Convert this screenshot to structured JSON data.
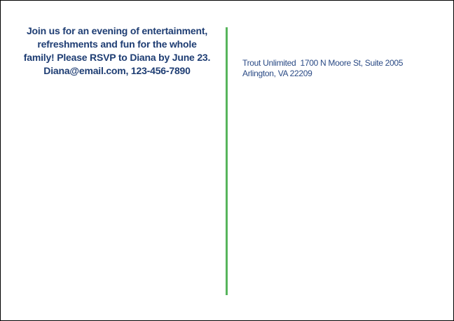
{
  "card": {
    "background": "#ffffff",
    "border_color": "#000000",
    "divider_color": "#57b55c",
    "invitation": {
      "text_color": "#1e3d73",
      "lines": [
        "Join us for an evening of entertainment,",
        "refreshments and fun for the whole",
        "family! Please RSVP to Diana by June 23.",
        "Diana@email.com, 123-456-7890"
      ]
    },
    "return_address": {
      "text_color": "#2a4a85",
      "lines": [
        "Trout Unlimited  1700 N Moore St, Suite 2005",
        "Arlington, VA 22209"
      ]
    }
  }
}
